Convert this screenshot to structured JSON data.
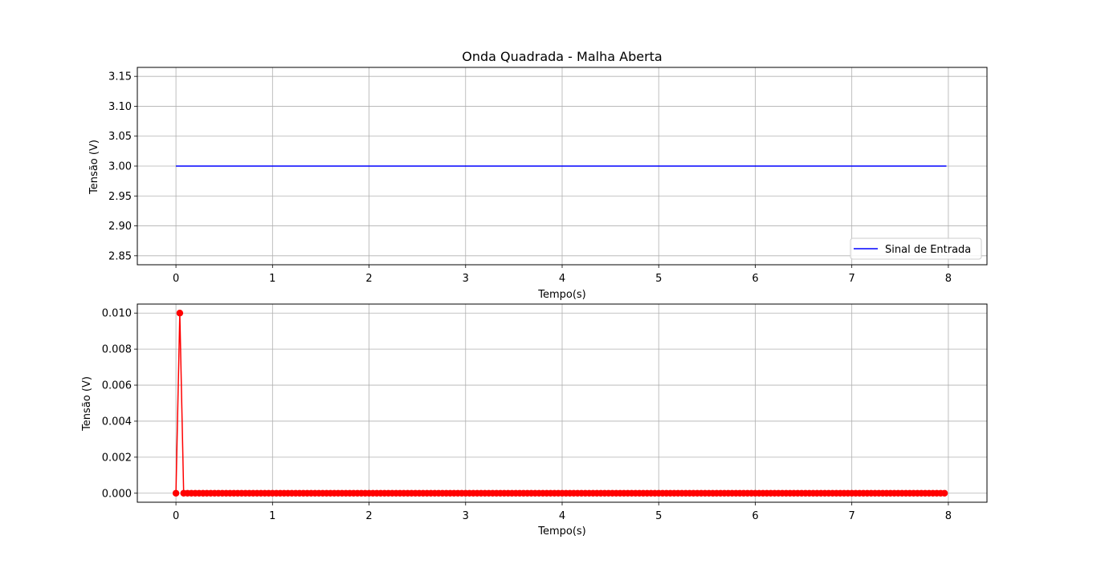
{
  "chart_data": [
    {
      "type": "line",
      "title": "Onda Quadrada - Malha Aberta",
      "xlabel": "Tempo(s)",
      "ylabel": "Tensão (V)",
      "xlim": [
        -0.4,
        8.4
      ],
      "ylim": [
        2.835,
        3.165
      ],
      "xticks": [
        "0",
        "1",
        "2",
        "3",
        "4",
        "5",
        "6",
        "7",
        "8"
      ],
      "yticks": [
        "2.85",
        "2.90",
        "2.95",
        "3.00",
        "3.05",
        "3.10",
        "3.15"
      ],
      "grid": true,
      "legend": "lower right",
      "series": [
        {
          "name": "Sinal de Entrada",
          "color": "#0000ff",
          "marker": "none",
          "x": [
            0,
            7.98
          ],
          "y": [
            3.0,
            3.0
          ]
        }
      ]
    },
    {
      "type": "line",
      "title": "",
      "xlabel": "Tempo(s)",
      "ylabel": "Tensão (V)",
      "xlim": [
        -0.4,
        8.4
      ],
      "ylim": [
        -0.0005,
        0.0105
      ],
      "xticks": [
        "0",
        "1",
        "2",
        "3",
        "4",
        "5",
        "6",
        "7",
        "8"
      ],
      "yticks": [
        "0.000",
        "0.002",
        "0.004",
        "0.006",
        "0.008",
        "0.010"
      ],
      "grid": true,
      "legend": "none",
      "series": [
        {
          "color": "#ff0000",
          "marker": "circle",
          "sample_interval": 0.04,
          "x_start": 0,
          "x_end": 7.96,
          "y_default": 0,
          "spikes": [
            {
              "x": 0.04,
              "y": 0.01
            }
          ]
        }
      ]
    }
  ]
}
